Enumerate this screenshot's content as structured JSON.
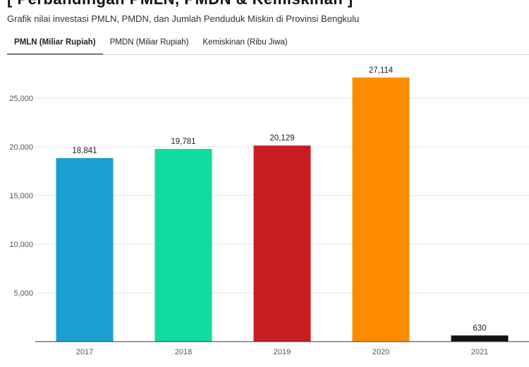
{
  "header": {
    "title": "[ Perbandingan PMLN, PMDN & Kemiskinan ]",
    "subtitle": "Grafik nilai investasi PMLN, PMDN, dan Jumlah Penduduk Miskin di Provinsi Bengkulu"
  },
  "tabs": [
    {
      "label": "PMLN (Miliar Rupiah)",
      "active": true
    },
    {
      "label": "PMDN (Miliar Rupiah)",
      "active": false
    },
    {
      "label": "Kemiskinan (Ribu Jiwa)",
      "active": false
    }
  ],
  "chart_data": {
    "type": "bar",
    "categories": [
      "2017",
      "2018",
      "2019",
      "2020",
      "2021"
    ],
    "values": [
      18841,
      19781,
      20129,
      27114,
      630
    ],
    "value_labels": [
      "18,841",
      "19,781",
      "20,129",
      "27,114",
      "630"
    ],
    "colors": [
      "#1a9fd1",
      "#10dca0",
      "#c81e22",
      "#ff8c00",
      "#111111"
    ],
    "yticks": [
      5000,
      10000,
      15000,
      20000,
      25000
    ],
    "ytick_labels": [
      "5,000",
      "10,000",
      "15,000",
      "20,000",
      "25,000"
    ],
    "ylim": [
      0,
      29000
    ],
    "grid": true,
    "title": "",
    "xlabel": "",
    "ylabel": ""
  }
}
